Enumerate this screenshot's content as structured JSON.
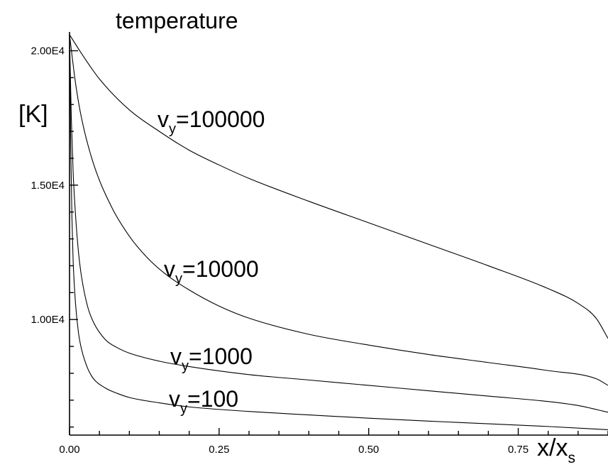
{
  "chart_data": {
    "type": "line",
    "title": "temperature",
    "ylabel": "[K]",
    "xlabel": {
      "main": "x/x",
      "sub": "s"
    },
    "xlim": [
      0.0,
      0.9
    ],
    "ylim": [
      5700,
      20700
    ],
    "x_ticks": [
      0.0,
      0.25,
      0.5,
      0.75
    ],
    "x_tick_labels": [
      "0.00",
      "0.25",
      "0.50",
      "0.75"
    ],
    "y_ticks": [
      10000,
      15000,
      20000
    ],
    "y_tick_labels": [
      "1.00E4",
      "1.50E4",
      "2.00E4"
    ],
    "grid": false,
    "legend": "none",
    "series": [
      {
        "name_main": "v",
        "name_sub": "y",
        "name_value": "=100000",
        "x": [
          0.0,
          0.02,
          0.05,
          0.1,
          0.15,
          0.2,
          0.25,
          0.3,
          0.4,
          0.5,
          0.6,
          0.7,
          0.8,
          0.85,
          0.88,
          0.9
        ],
        "y": [
          20600,
          19900,
          18950,
          17800,
          17000,
          16300,
          15750,
          15250,
          14400,
          13600,
          12800,
          12000,
          11150,
          10600,
          10050,
          9300
        ]
      },
      {
        "name_main": "v",
        "name_sub": "y",
        "name_value": "=10000",
        "x": [
          0.0,
          0.01,
          0.02,
          0.04,
          0.07,
          0.1,
          0.13,
          0.16,
          0.2,
          0.25,
          0.3,
          0.4,
          0.5,
          0.6,
          0.7,
          0.8,
          0.88,
          0.9
        ],
        "y": [
          20600,
          18800,
          17500,
          15800,
          14200,
          13100,
          12300,
          11700,
          11100,
          10500,
          10050,
          9450,
          9050,
          8700,
          8400,
          8100,
          7800,
          7550
        ]
      },
      {
        "name_main": "v",
        "name_sub": "y",
        "name_value": "=1000",
        "x": [
          0.0,
          0.003,
          0.006,
          0.01,
          0.015,
          0.02,
          0.03,
          0.04,
          0.06,
          0.08,
          0.1,
          0.15,
          0.2,
          0.3,
          0.4,
          0.5,
          0.6,
          0.7,
          0.8,
          0.85,
          0.9
        ],
        "y": [
          20600,
          17500,
          15500,
          13900,
          12500,
          11600,
          10500,
          9900,
          9250,
          8950,
          8750,
          8450,
          8250,
          7950,
          7750,
          7550,
          7350,
          7150,
          6950,
          6800,
          6550
        ]
      },
      {
        "name_main": "v",
        "name_sub": "y",
        "name_value": "=100",
        "x": [
          0.0,
          0.002,
          0.004,
          0.006,
          0.01,
          0.015,
          0.02,
          0.03,
          0.04,
          0.06,
          0.08,
          0.1,
          0.15,
          0.2,
          0.3,
          0.4,
          0.5,
          0.6,
          0.7,
          0.8,
          0.9
        ],
        "y": [
          20600,
          16500,
          13800,
          12200,
          10600,
          9500,
          8900,
          8200,
          7800,
          7450,
          7250,
          7100,
          6900,
          6750,
          6580,
          6450,
          6330,
          6220,
          6120,
          6020,
          5900
        ]
      }
    ]
  }
}
